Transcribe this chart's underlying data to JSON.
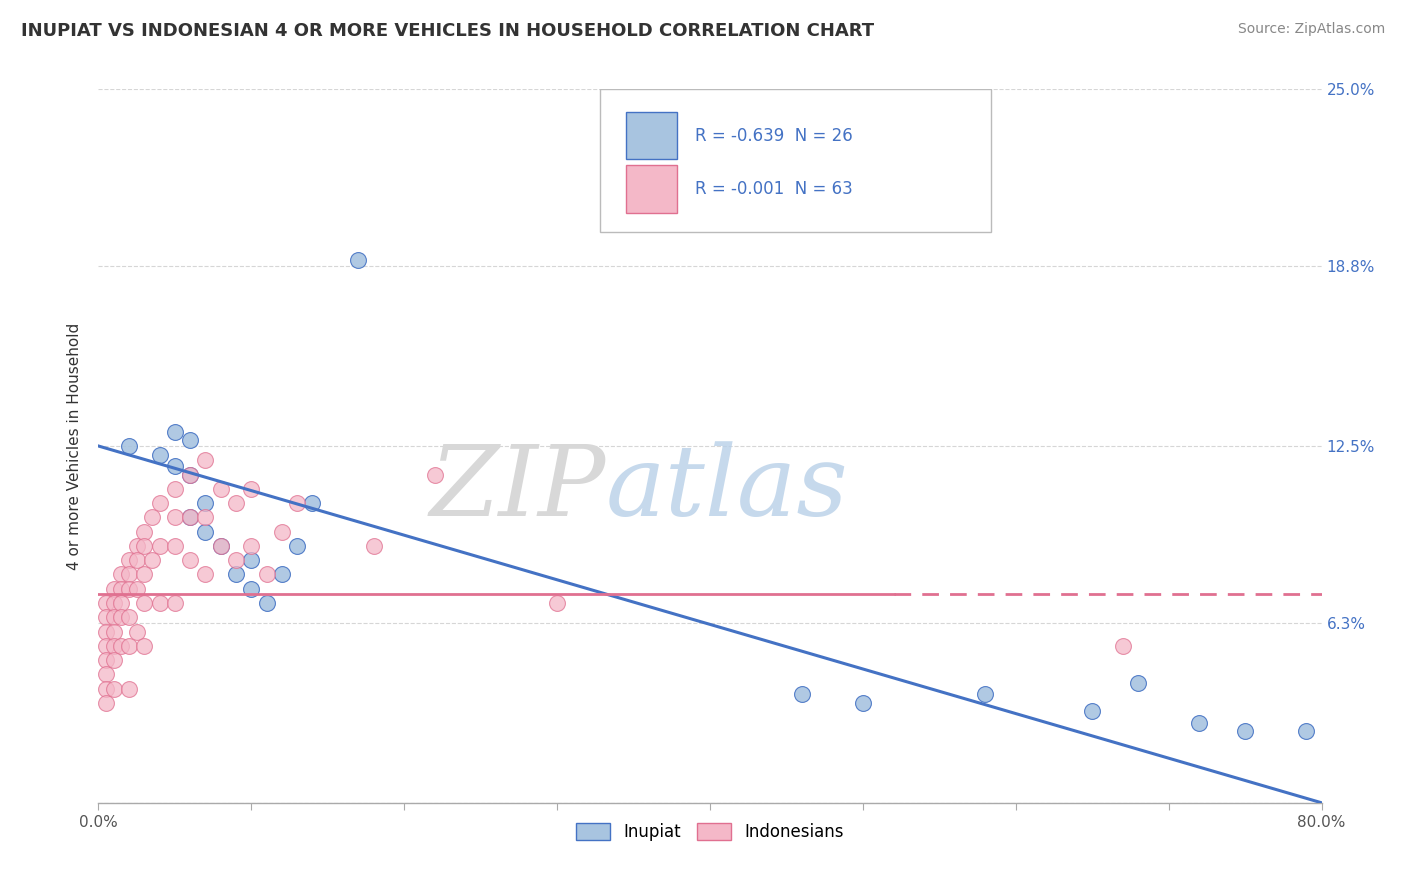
{
  "title": "INUPIAT VS INDONESIAN 4 OR MORE VEHICLES IN HOUSEHOLD CORRELATION CHART",
  "source_text": "Source: ZipAtlas.com",
  "ylabel": "4 or more Vehicles in Household",
  "watermark_zip": "ZIP",
  "watermark_atlas": "atlas",
  "xlim": [
    0.0,
    0.8
  ],
  "ylim": [
    0.0,
    0.25
  ],
  "xtick_values": [
    0.0,
    0.1,
    0.2,
    0.3,
    0.4,
    0.5,
    0.6,
    0.7,
    0.8
  ],
  "xtick_edge_labels": {
    "0": "0.0%",
    "8": "80.0%"
  },
  "ytick_values": [
    0.0,
    0.063,
    0.125,
    0.188,
    0.25
  ],
  "right_ytick_labels": [
    "25.0%",
    "18.8%",
    "12.5%",
    "6.3%",
    ""
  ],
  "right_ytick_values": [
    0.25,
    0.188,
    0.125,
    0.063,
    0.0
  ],
  "inupiat_color": "#a8c4e0",
  "indonesian_color": "#f4b8c8",
  "inupiat_edge_color": "#4472c4",
  "indonesian_edge_color": "#e07090",
  "inupiat_line_color": "#4472c4",
  "indonesian_line_color": "#e07090",
  "legend_r1": "R = -0.639  N = 26",
  "legend_r2": "R = -0.001  N = 63",
  "legend_label1": "Inupiat",
  "legend_label2": "Indonesians",
  "background_color": "#ffffff",
  "grid_color": "#cccccc",
  "inupiat_x": [
    0.02,
    0.04,
    0.05,
    0.05,
    0.06,
    0.06,
    0.06,
    0.07,
    0.07,
    0.08,
    0.09,
    0.1,
    0.1,
    0.11,
    0.12,
    0.13,
    0.14,
    0.17,
    0.46,
    0.5,
    0.58,
    0.65,
    0.68,
    0.72,
    0.75,
    0.79
  ],
  "inupiat_y": [
    0.125,
    0.122,
    0.13,
    0.118,
    0.127,
    0.1,
    0.115,
    0.095,
    0.105,
    0.09,
    0.08,
    0.085,
    0.075,
    0.07,
    0.08,
    0.09,
    0.105,
    0.19,
    0.038,
    0.035,
    0.038,
    0.032,
    0.042,
    0.028,
    0.025,
    0.025
  ],
  "indonesian_x": [
    0.005,
    0.005,
    0.005,
    0.005,
    0.005,
    0.005,
    0.005,
    0.005,
    0.01,
    0.01,
    0.01,
    0.01,
    0.01,
    0.01,
    0.01,
    0.015,
    0.015,
    0.015,
    0.015,
    0.015,
    0.02,
    0.02,
    0.02,
    0.02,
    0.02,
    0.02,
    0.025,
    0.025,
    0.025,
    0.025,
    0.03,
    0.03,
    0.03,
    0.03,
    0.03,
    0.035,
    0.035,
    0.04,
    0.04,
    0.04,
    0.05,
    0.05,
    0.05,
    0.05,
    0.06,
    0.06,
    0.06,
    0.07,
    0.07,
    0.07,
    0.08,
    0.08,
    0.09,
    0.09,
    0.1,
    0.1,
    0.11,
    0.12,
    0.13,
    0.18,
    0.22,
    0.3,
    0.67
  ],
  "indonesian_y": [
    0.07,
    0.065,
    0.06,
    0.055,
    0.05,
    0.045,
    0.04,
    0.035,
    0.075,
    0.07,
    0.065,
    0.06,
    0.055,
    0.05,
    0.04,
    0.08,
    0.075,
    0.07,
    0.065,
    0.055,
    0.085,
    0.08,
    0.075,
    0.065,
    0.055,
    0.04,
    0.09,
    0.085,
    0.075,
    0.06,
    0.095,
    0.09,
    0.08,
    0.07,
    0.055,
    0.1,
    0.085,
    0.105,
    0.09,
    0.07,
    0.11,
    0.1,
    0.09,
    0.07,
    0.115,
    0.1,
    0.085,
    0.12,
    0.1,
    0.08,
    0.11,
    0.09,
    0.105,
    0.085,
    0.11,
    0.09,
    0.08,
    0.095,
    0.105,
    0.09,
    0.115,
    0.07,
    0.055
  ],
  "inupiat_regression": [
    0.125,
    0.0
  ],
  "indonesian_regression_y": 0.073,
  "title_fontsize": 13,
  "source_fontsize": 10,
  "axis_label_fontsize": 11,
  "tick_fontsize": 11
}
